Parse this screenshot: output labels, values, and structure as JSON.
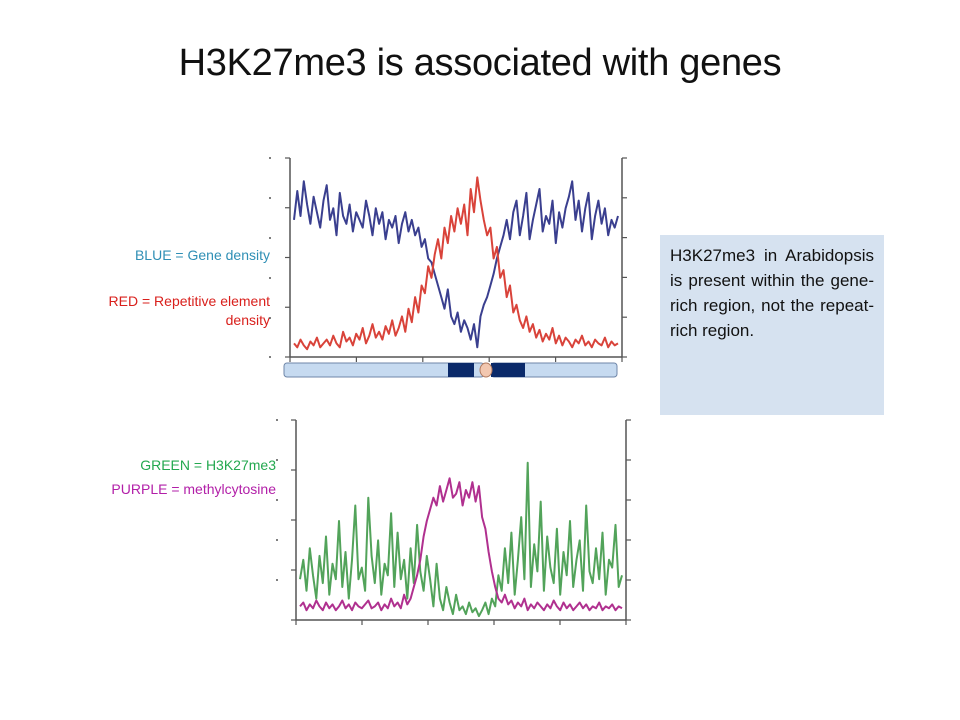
{
  "title": "H3K27me3 is associated with genes",
  "legend": {
    "blue": "BLUE = Gene density",
    "red": "RED = Repetitive element density",
    "green": "GREEN = H3K27me3",
    "purple": "PURPLE = methylcytosine"
  },
  "note": "H3K27me3 in Arabidopsis is present within the gene-rich region, not the repeat-rich region.",
  "colors": {
    "blue": "#3a3f8f",
    "red": "#d9433a",
    "green": "#52a35a",
    "purple": "#b0308f",
    "label_blue": "#2f8fb5",
    "label_red": "#d9201c",
    "label_green": "#23a84f",
    "label_purple": "#b21fa8",
    "chromosome": "#c6daf0",
    "centromere_band": "#0b2a6a",
    "centromere": "#f2c7b0"
  },
  "chart_data": [
    {
      "type": "line",
      "xlabel": "",
      "ylabel": "",
      "xlim": [
        0,
        100
      ],
      "ylim": [
        0,
        1
      ],
      "series": [
        {
          "key": "blue",
          "values": [
            0.7,
            0.85,
            0.72,
            0.9,
            0.78,
            0.68,
            0.82,
            0.74,
            0.66,
            0.8,
            0.88,
            0.7,
            0.76,
            0.62,
            0.84,
            0.72,
            0.68,
            0.78,
            0.64,
            0.74,
            0.7,
            0.66,
            0.8,
            0.72,
            0.62,
            0.76,
            0.68,
            0.74,
            0.6,
            0.7,
            0.66,
            0.72,
            0.58,
            0.68,
            0.74,
            0.64,
            0.7,
            0.62,
            0.66,
            0.56,
            0.6,
            0.5,
            0.48,
            0.42,
            0.36,
            0.3,
            0.24,
            0.34,
            0.2,
            0.16,
            0.22,
            0.12,
            0.18,
            0.14,
            0.08,
            0.16,
            0.04,
            0.2,
            0.26,
            0.3,
            0.36,
            0.42,
            0.5,
            0.56,
            0.62,
            0.7,
            0.6,
            0.74,
            0.8,
            0.62,
            0.72,
            0.84,
            0.6,
            0.7,
            0.78,
            0.86,
            0.64,
            0.72,
            0.68,
            0.8,
            0.58,
            0.74,
            0.66,
            0.76,
            0.82,
            0.9,
            0.7,
            0.8,
            0.64,
            0.76,
            0.84,
            0.6,
            0.72,
            0.8,
            0.68,
            0.76,
            0.62,
            0.7,
            0.66,
            0.72
          ]
        },
        {
          "key": "red",
          "values": [
            0.06,
            0.04,
            0.08,
            0.05,
            0.03,
            0.07,
            0.05,
            0.09,
            0.04,
            0.06,
            0.08,
            0.05,
            0.1,
            0.06,
            0.04,
            0.12,
            0.07,
            0.09,
            0.05,
            0.11,
            0.08,
            0.14,
            0.06,
            0.1,
            0.16,
            0.09,
            0.12,
            0.08,
            0.15,
            0.11,
            0.18,
            0.1,
            0.14,
            0.2,
            0.12,
            0.24,
            0.17,
            0.3,
            0.22,
            0.36,
            0.32,
            0.46,
            0.4,
            0.52,
            0.6,
            0.5,
            0.66,
            0.58,
            0.72,
            0.64,
            0.76,
            0.68,
            0.78,
            0.62,
            0.86,
            0.74,
            0.92,
            0.8,
            0.7,
            0.62,
            0.66,
            0.5,
            0.56,
            0.4,
            0.44,
            0.3,
            0.36,
            0.22,
            0.26,
            0.18,
            0.14,
            0.2,
            0.12,
            0.16,
            0.09,
            0.13,
            0.07,
            0.11,
            0.08,
            0.14,
            0.06,
            0.1,
            0.05,
            0.09,
            0.07,
            0.04,
            0.08,
            0.06,
            0.1,
            0.05,
            0.07,
            0.04,
            0.08,
            0.06,
            0.05,
            0.09,
            0.04,
            0.07,
            0.05,
            0.06
          ]
        }
      ]
    },
    {
      "type": "line",
      "xlabel": "",
      "ylabel": "",
      "xlim": [
        0,
        100
      ],
      "ylim": [
        0,
        1
      ],
      "series": [
        {
          "key": "green",
          "values": [
            0.2,
            0.3,
            0.14,
            0.36,
            0.22,
            0.1,
            0.32,
            0.18,
            0.42,
            0.12,
            0.28,
            0.2,
            0.5,
            0.16,
            0.34,
            0.1,
            0.3,
            0.58,
            0.2,
            0.26,
            0.14,
            0.62,
            0.32,
            0.18,
            0.4,
            0.12,
            0.28,
            0.22,
            0.54,
            0.16,
            0.44,
            0.2,
            0.3,
            0.1,
            0.36,
            0.18,
            0.48,
            0.24,
            0.14,
            0.32,
            0.2,
            0.06,
            0.28,
            0.1,
            0.04,
            0.16,
            0.08,
            0.02,
            0.12,
            0.04,
            0.06,
            0.02,
            0.08,
            0.03,
            0.05,
            0.01,
            0.04,
            0.08,
            0.02,
            0.1,
            0.06,
            0.22,
            0.14,
            0.36,
            0.18,
            0.44,
            0.12,
            0.3,
            0.52,
            0.2,
            0.8,
            0.16,
            0.38,
            0.24,
            0.6,
            0.14,
            0.42,
            0.26,
            0.18,
            0.46,
            0.12,
            0.34,
            0.22,
            0.5,
            0.16,
            0.3,
            0.4,
            0.14,
            0.58,
            0.24,
            0.18,
            0.36,
            0.2,
            0.44,
            0.12,
            0.3,
            0.26,
            0.48,
            0.16,
            0.22
          ]
        },
        {
          "key": "purple",
          "values": [
            0.06,
            0.08,
            0.04,
            0.07,
            0.05,
            0.09,
            0.06,
            0.04,
            0.08,
            0.05,
            0.07,
            0.04,
            0.06,
            0.09,
            0.05,
            0.07,
            0.04,
            0.08,
            0.06,
            0.05,
            0.07,
            0.09,
            0.05,
            0.06,
            0.08,
            0.04,
            0.07,
            0.05,
            0.1,
            0.06,
            0.08,
            0.05,
            0.12,
            0.07,
            0.1,
            0.16,
            0.22,
            0.3,
            0.42,
            0.5,
            0.56,
            0.62,
            0.58,
            0.68,
            0.6,
            0.66,
            0.72,
            0.62,
            0.64,
            0.7,
            0.58,
            0.66,
            0.62,
            0.7,
            0.6,
            0.68,
            0.52,
            0.46,
            0.34,
            0.24,
            0.16,
            0.1,
            0.08,
            0.12,
            0.07,
            0.09,
            0.05,
            0.08,
            0.06,
            0.1,
            0.04,
            0.07,
            0.05,
            0.08,
            0.06,
            0.04,
            0.07,
            0.05,
            0.09,
            0.06,
            0.04,
            0.08,
            0.05,
            0.07,
            0.04,
            0.06,
            0.08,
            0.05,
            0.07,
            0.04,
            0.06,
            0.05,
            0.08,
            0.04,
            0.06,
            0.05,
            0.07,
            0.04,
            0.06,
            0.05
          ]
        }
      ]
    }
  ]
}
